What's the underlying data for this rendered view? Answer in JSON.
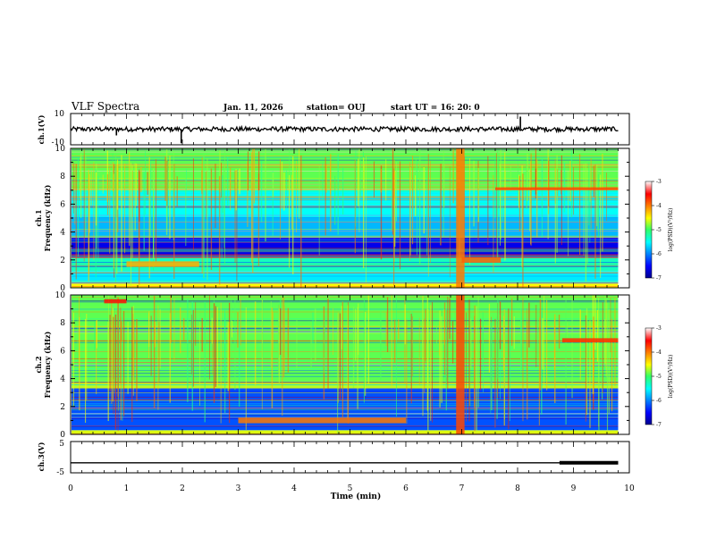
{
  "header": {
    "title": "VLF Spectra",
    "date": "Jan. 11, 2026",
    "station": "station= OUJ",
    "start": "start  UT =   16: 20: 0"
  },
  "chart_data": [
    {
      "type": "line",
      "name": "ch.1 waveform",
      "ylabel": "ch.1(V)",
      "ylim": [
        -10,
        10
      ],
      "yticks": [
        "10",
        "-10"
      ],
      "baseline": 0,
      "noise_amplitude": 1.5,
      "spikes": [
        {
          "x": 0.82,
          "y": -4
        },
        {
          "x": 1.98,
          "y": -9
        },
        {
          "x": 8.05,
          "y": 8
        }
      ]
    },
    {
      "type": "heatmap",
      "name": "ch.1 spectrogram",
      "ylabel_top": "ch.1",
      "ylabel": "Frequency (kHz)",
      "ylim": [
        0,
        10
      ],
      "yticks": [
        "0",
        "2",
        "4",
        "6",
        "8",
        "10"
      ],
      "colorbar": {
        "label": "log(PSD)(V²/Hz)",
        "min": -7,
        "max": -3,
        "ticks": [
          "-3",
          "-4",
          "-5",
          "-6",
          "-7"
        ]
      },
      "bands": [
        {
          "f0": 0.0,
          "f1": 0.3,
          "level": -4.5
        },
        {
          "f0": 0.3,
          "f1": 1.2,
          "level": -5.6
        },
        {
          "f0": 1.2,
          "f1": 2.2,
          "level": -5.3
        },
        {
          "f0": 2.2,
          "f1": 3.6,
          "level": -6.6
        },
        {
          "f0": 3.6,
          "f1": 5.0,
          "level": -5.8
        },
        {
          "f0": 5.0,
          "f1": 7.0,
          "level": -5.5
        },
        {
          "f0": 7.0,
          "f1": 10.0,
          "level": -4.9
        }
      ],
      "events": [
        {
          "t0": 6.9,
          "t1": 7.05,
          "f0": 0,
          "f1": 10,
          "level": -4.0
        },
        {
          "t0": 7.6,
          "t1": 9.8,
          "f0": 7.0,
          "f1": 7.2,
          "level": -3.8
        },
        {
          "t0": 7.0,
          "t1": 7.7,
          "f0": 1.8,
          "f1": 2.2,
          "level": -3.9
        },
        {
          "t0": 1.0,
          "t1": 2.3,
          "f0": 1.5,
          "f1": 1.9,
          "level": -4.2
        }
      ]
    },
    {
      "type": "heatmap",
      "name": "ch.2 spectrogram",
      "ylabel_top": "ch.2",
      "ylabel": "Frequency (kHz)",
      "ylim": [
        0,
        10
      ],
      "yticks": [
        "0",
        "2",
        "4",
        "6",
        "8",
        "10"
      ],
      "colorbar": {
        "label": "log(PSD)(V²/Hz)",
        "min": -7,
        "max": -3,
        "ticks": [
          "-3",
          "-4",
          "-5",
          "-6",
          "-7"
        ]
      },
      "bands": [
        {
          "f0": 0.0,
          "f1": 0.3,
          "level": -4.6
        },
        {
          "f0": 0.3,
          "f1": 3.3,
          "level": -6.2
        },
        {
          "f0": 3.3,
          "f1": 3.8,
          "level": -4.7
        },
        {
          "f0": 3.8,
          "f1": 10.0,
          "level": -4.9
        }
      ],
      "events": [
        {
          "t0": 6.9,
          "t1": 7.05,
          "f0": 0,
          "f1": 10,
          "level": -3.8
        },
        {
          "t0": 0.6,
          "t1": 1.0,
          "f0": 9.4,
          "f1": 9.7,
          "level": -3.6
        },
        {
          "t0": 8.8,
          "t1": 9.8,
          "f0": 6.6,
          "f1": 6.9,
          "level": -3.7
        },
        {
          "t0": 3.0,
          "t1": 6.0,
          "f0": 0.8,
          "f1": 1.2,
          "level": -4.0
        }
      ]
    },
    {
      "type": "line",
      "name": "ch.3 level",
      "ylabel": "ch.3(V)",
      "ylim": [
        -5,
        5
      ],
      "yticks": [
        "5",
        "-5"
      ],
      "baseline": -1.8,
      "thick_from": 8.75,
      "thick_to": 9.8
    }
  ],
  "time_axis": {
    "label": "Time (min)",
    "range": [
      0,
      10
    ],
    "ticks": [
      "0",
      "1",
      "2",
      "3",
      "4",
      "5",
      "6",
      "7",
      "8",
      "9",
      "10"
    ],
    "data_end": 9.8
  }
}
